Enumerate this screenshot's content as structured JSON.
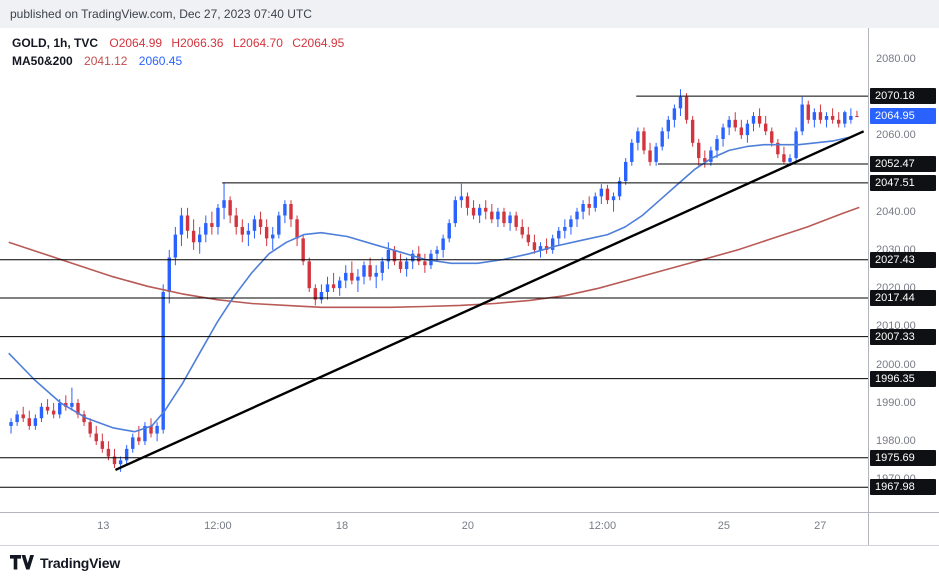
{
  "publish_bar": {
    "text": "published on TradingView.com, Dec 27, 2023 07:40 UTC"
  },
  "legend": {
    "symbol": "GOLD, 1h, TVC",
    "ohlc_o": "O2064.99",
    "ohlc_h": "H2066.36",
    "ohlc_l": "L2064.70",
    "ohlc_c": "C2064.95",
    "ma_label": "MA50&200",
    "ma_values": [
      "2041.12",
      "2060.45"
    ]
  },
  "footer": {
    "brand": "TradingView"
  },
  "colors": {
    "candle_up": "#2962ff",
    "candle_down": "#d2353e",
    "ma_fast": "#4e7fd9",
    "ma_slow": "#b85a56",
    "level_line": "#000000",
    "trend_line": "#000000",
    "axis_text": "#787b86",
    "last_badge": "#2962ff",
    "level_badge": "#0f1013"
  },
  "chart_data": {
    "type": "candlestick",
    "title": "GOLD 1h TVC",
    "symbol": "GOLD",
    "interval": "1h",
    "exchange": "TVC",
    "last_price": 2064.95,
    "y_axis": {
      "min": 1961.5,
      "max": 2088,
      "ticks": [
        {
          "label": "2080.00",
          "price": 2080
        },
        {
          "label": "2060.00",
          "price": 2060
        },
        {
          "label": "2040.00",
          "price": 2040
        },
        {
          "label": "2030.00",
          "price": 2030
        },
        {
          "label": "2020.00",
          "price": 2020
        },
        {
          "label": "2010.00",
          "price": 2010
        },
        {
          "label": "2000.00",
          "price": 2000
        },
        {
          "label": "1990.00",
          "price": 1990
        },
        {
          "label": "1980.00",
          "price": 1980
        },
        {
          "label": "1970.00",
          "price": 1970
        }
      ]
    },
    "x_axis": {
      "ticks": [
        {
          "label": "13",
          "x": 0.119
        },
        {
          "label": "12:00",
          "x": 0.251
        },
        {
          "label": "18",
          "x": 0.394
        },
        {
          "label": "20",
          "x": 0.539
        },
        {
          "label": "12:00",
          "x": 0.694
        },
        {
          "label": "25",
          "x": 0.834
        },
        {
          "label": "27",
          "x": 0.945
        }
      ]
    },
    "price_badges": [
      {
        "label": "2070.18",
        "price": 2070.18,
        "type": "level"
      },
      {
        "label": "2064.95",
        "price": 2064.95,
        "type": "last"
      },
      {
        "label": "2052.47",
        "price": 2052.47,
        "type": "level"
      },
      {
        "label": "2047.51",
        "price": 2047.51,
        "type": "level"
      },
      {
        "label": "2027.43",
        "price": 2027.43,
        "type": "level"
      },
      {
        "label": "2017.44",
        "price": 2017.44,
        "type": "level"
      },
      {
        "label": "2007.33",
        "price": 2007.33,
        "type": "level"
      },
      {
        "label": "1996.35",
        "price": 1996.35,
        "type": "level"
      },
      {
        "label": "1975.69",
        "price": 1975.69,
        "type": "level"
      },
      {
        "label": "1967.98",
        "price": 1967.98,
        "type": "level"
      }
    ],
    "price_lines": [
      {
        "price": 2070.18,
        "from": 0.733,
        "to": 1
      },
      {
        "price": 2052.47,
        "from": 0.758,
        "to": 1
      },
      {
        "price": 2047.51,
        "from": 0.256,
        "to": 1
      },
      {
        "price": 2027.43,
        "from": 0,
        "to": 1
      },
      {
        "price": 2017.44,
        "from": 0,
        "to": 1
      },
      {
        "price": 2007.33,
        "from": 0,
        "to": 1
      },
      {
        "price": 1996.35,
        "from": 0,
        "to": 1
      },
      {
        "price": 1975.69,
        "from": 0,
        "to": 1
      },
      {
        "price": 1967.98,
        "from": 0,
        "to": 1
      }
    ],
    "trend_line": {
      "x1": 0.133,
      "price1": 1972.5,
      "x2": 0.995,
      "price2": 2061
    },
    "ma_fast": {
      "name": "MA blue",
      "points": [
        [
          0.01,
          2003
        ],
        [
          0.04,
          1996
        ],
        [
          0.07,
          1990
        ],
        [
          0.1,
          1986
        ],
        [
          0.13,
          1983.5
        ],
        [
          0.155,
          1982.5
        ],
        [
          0.175,
          1984
        ],
        [
          0.19,
          1988
        ],
        [
          0.21,
          1995
        ],
        [
          0.23,
          2003
        ],
        [
          0.25,
          2011
        ],
        [
          0.27,
          2018
        ],
        [
          0.29,
          2024
        ],
        [
          0.31,
          2029
        ],
        [
          0.33,
          2032
        ],
        [
          0.35,
          2034
        ],
        [
          0.37,
          2034.5
        ],
        [
          0.4,
          2033.5
        ],
        [
          0.43,
          2031.5
        ],
        [
          0.46,
          2029.5
        ],
        [
          0.49,
          2027.5
        ],
        [
          0.52,
          2026.5
        ],
        [
          0.55,
          2026.5
        ],
        [
          0.58,
          2027.5
        ],
        [
          0.61,
          2029
        ],
        [
          0.64,
          2031
        ],
        [
          0.67,
          2032.5
        ],
        [
          0.7,
          2034
        ],
        [
          0.72,
          2036
        ],
        [
          0.74,
          2039
        ],
        [
          0.76,
          2043
        ],
        [
          0.78,
          2047
        ],
        [
          0.8,
          2051
        ],
        [
          0.82,
          2054
        ],
        [
          0.84,
          2056
        ],
        [
          0.86,
          2057
        ],
        [
          0.88,
          2057.5
        ],
        [
          0.9,
          2057.5
        ],
        [
          0.92,
          2057.5
        ],
        [
          0.94,
          2058
        ],
        [
          0.96,
          2058.5
        ],
        [
          0.98,
          2059.5
        ],
        [
          0.99,
          2060.45
        ]
      ]
    },
    "ma_slow": {
      "name": "MA red",
      "points": [
        [
          0.01,
          2032
        ],
        [
          0.05,
          2029
        ],
        [
          0.09,
          2026
        ],
        [
          0.13,
          2023
        ],
        [
          0.17,
          2020.5
        ],
        [
          0.21,
          2018.5
        ],
        [
          0.25,
          2017
        ],
        [
          0.29,
          2016
        ],
        [
          0.33,
          2015.5
        ],
        [
          0.37,
          2015
        ],
        [
          0.41,
          2015
        ],
        [
          0.45,
          2015
        ],
        [
          0.49,
          2015.2
        ],
        [
          0.53,
          2015.5
        ],
        [
          0.57,
          2016
        ],
        [
          0.61,
          2016.8
        ],
        [
          0.65,
          2018
        ],
        [
          0.69,
          2020
        ],
        [
          0.73,
          2022.5
        ],
        [
          0.77,
          2025
        ],
        [
          0.81,
          2027.5
        ],
        [
          0.85,
          2030
        ],
        [
          0.89,
          2033
        ],
        [
          0.93,
          2036
        ],
        [
          0.97,
          2039.5
        ],
        [
          0.99,
          2041.12
        ]
      ]
    },
    "candles": [
      [
        1984,
        1986,
        1982,
        1985
      ],
      [
        1985,
        1988,
        1984,
        1987
      ],
      [
        1987,
        1989,
        1985,
        1986
      ],
      [
        1986,
        1988,
        1983,
        1984
      ],
      [
        1984,
        1987,
        1983,
        1986
      ],
      [
        1986,
        1990,
        1985,
        1989
      ],
      [
        1989,
        1991,
        1987,
        1988
      ],
      [
        1988,
        1990,
        1986,
        1987
      ],
      [
        1987,
        1991,
        1986,
        1990
      ],
      [
        1990,
        1992,
        1988,
        1989
      ],
      [
        1989,
        1994,
        1988,
        1990
      ],
      [
        1990,
        1991,
        1986,
        1987
      ],
      [
        1987,
        1988,
        1984,
        1985
      ],
      [
        1985,
        1986,
        1981,
        1982
      ],
      [
        1982,
        1984,
        1979,
        1980
      ],
      [
        1980,
        1982,
        1977,
        1978
      ],
      [
        1978,
        1980,
        1975,
        1976
      ],
      [
        1976,
        1978,
        1973,
        1974
      ],
      [
        1974,
        1976,
        1972,
        1975
      ],
      [
        1975,
        1979,
        1974,
        1978
      ],
      [
        1978,
        1982,
        1977,
        1981
      ],
      [
        1981,
        1984,
        1979,
        1980
      ],
      [
        1980,
        1985,
        1979,
        1984
      ],
      [
        1984,
        1986,
        1981,
        1982
      ],
      [
        1982,
        1985,
        1980,
        1984
      ],
      [
        1983,
        2021,
        1982,
        2019
      ],
      [
        2019,
        2030,
        2016,
        2028
      ],
      [
        2028,
        2036,
        2026,
        2034
      ],
      [
        2034,
        2041,
        2031,
        2039
      ],
      [
        2039,
        2041,
        2033,
        2035
      ],
      [
        2035,
        2038,
        2030,
        2032
      ],
      [
        2032,
        2036,
        2029,
        2034
      ],
      [
        2034,
        2039,
        2032,
        2037
      ],
      [
        2037,
        2040,
        2034,
        2036
      ],
      [
        2036,
        2042,
        2034,
        2041
      ],
      [
        2041,
        2047.5,
        2038,
        2043
      ],
      [
        2043,
        2044,
        2037,
        2039
      ],
      [
        2039,
        2041,
        2034,
        2036
      ],
      [
        2036,
        2038,
        2032,
        2034
      ],
      [
        2034,
        2037,
        2031,
        2035
      ],
      [
        2035,
        2039,
        2033,
        2038
      ],
      [
        2038,
        2040,
        2034,
        2036
      ],
      [
        2036,
        2038,
        2031,
        2033
      ],
      [
        2033,
        2036,
        2030,
        2034
      ],
      [
        2034,
        2040,
        2033,
        2039
      ],
      [
        2039,
        2043,
        2037,
        2042
      ],
      [
        2042,
        2043,
        2036,
        2038
      ],
      [
        2038,
        2039,
        2031,
        2033
      ],
      [
        2033,
        2034,
        2026,
        2027
      ],
      [
        2027,
        2028,
        2019,
        2020
      ],
      [
        2020,
        2021,
        2015.5,
        2017
      ],
      [
        2017,
        2021,
        2016,
        2019
      ],
      [
        2019,
        2023,
        2017,
        2021
      ],
      [
        2021,
        2024,
        2019,
        2020
      ],
      [
        2020,
        2023,
        2018,
        2022
      ],
      [
        2022,
        2026,
        2020,
        2024
      ],
      [
        2024,
        2027,
        2021,
        2022
      ],
      [
        2022,
        2025,
        2019,
        2023
      ],
      [
        2023,
        2027,
        2021,
        2026
      ],
      [
        2026,
        2028,
        2022,
        2023
      ],
      [
        2023,
        2026,
        2020,
        2024
      ],
      [
        2024,
        2028,
        2022,
        2027
      ],
      [
        2027,
        2032,
        2025,
        2030
      ],
      [
        2030,
        2031,
        2026,
        2027
      ],
      [
        2027,
        2029,
        2024,
        2025
      ],
      [
        2025,
        2028,
        2023,
        2027
      ],
      [
        2027,
        2030,
        2025,
        2029
      ],
      [
        2029,
        2031,
        2026,
        2027
      ],
      [
        2027,
        2029,
        2024,
        2026
      ],
      [
        2026,
        2030,
        2025,
        2029
      ],
      [
        2029,
        2031,
        2027,
        2030
      ],
      [
        2030,
        2034,
        2028,
        2033
      ],
      [
        2033,
        2038,
        2032,
        2037
      ],
      [
        2037,
        2044,
        2036,
        2043
      ],
      [
        2043,
        2047.3,
        2041,
        2044
      ],
      [
        2044,
        2045,
        2039,
        2041
      ],
      [
        2041,
        2043,
        2038,
        2039
      ],
      [
        2039,
        2042,
        2037,
        2041
      ],
      [
        2041,
        2043,
        2038,
        2040
      ],
      [
        2040,
        2042,
        2037,
        2038
      ],
      [
        2038,
        2041,
        2036,
        2040
      ],
      [
        2040,
        2041,
        2036,
        2037
      ],
      [
        2037,
        2040,
        2035,
        2039
      ],
      [
        2039,
        2040,
        2035,
        2036
      ],
      [
        2036,
        2038,
        2033,
        2034
      ],
      [
        2034,
        2036,
        2031,
        2032
      ],
      [
        2032,
        2034,
        2029,
        2030
      ],
      [
        2030,
        2032,
        2028,
        2031
      ],
      [
        2031,
        2033,
        2029,
        2030
      ],
      [
        2030,
        2034,
        2029,
        2033
      ],
      [
        2033,
        2036,
        2031,
        2035
      ],
      [
        2035,
        2038,
        2033,
        2036
      ],
      [
        2036,
        2039,
        2034,
        2038
      ],
      [
        2038,
        2041,
        2036,
        2040
      ],
      [
        2040,
        2043,
        2038,
        2042
      ],
      [
        2042,
        2044,
        2039,
        2041
      ],
      [
        2041,
        2045,
        2040,
        2044
      ],
      [
        2044,
        2047.2,
        2042,
        2046
      ],
      [
        2046,
        2047,
        2042,
        2043
      ],
      [
        2043,
        2045,
        2040,
        2044
      ],
      [
        2044,
        2049,
        2043,
        2048
      ],
      [
        2048,
        2054,
        2047,
        2053
      ],
      [
        2053,
        2059,
        2052,
        2058
      ],
      [
        2058,
        2062,
        2056,
        2061
      ],
      [
        2061,
        2062,
        2055,
        2056
      ],
      [
        2056,
        2058,
        2052,
        2053
      ],
      [
        2053,
        2058,
        2052,
        2057
      ],
      [
        2057,
        2062,
        2056,
        2061
      ],
      [
        2061,
        2065,
        2059,
        2064
      ],
      [
        2064,
        2068,
        2062,
        2067
      ],
      [
        2067,
        2072,
        2065,
        2070
      ],
      [
        2070,
        2071,
        2063,
        2064
      ],
      [
        2064,
        2065,
        2057,
        2058
      ],
      [
        2058,
        2059,
        2052,
        2054
      ],
      [
        2054,
        2056,
        2051.5,
        2053
      ],
      [
        2053,
        2057,
        2052,
        2056
      ],
      [
        2056,
        2060,
        2054,
        2059
      ],
      [
        2059,
        2063,
        2057,
        2062
      ],
      [
        2062,
        2065,
        2060,
        2064
      ],
      [
        2064,
        2066,
        2061,
        2062
      ],
      [
        2062,
        2064,
        2059,
        2060
      ],
      [
        2060,
        2064,
        2058,
        2063
      ],
      [
        2063,
        2066,
        2061,
        2065
      ],
      [
        2065,
        2067,
        2062,
        2063
      ],
      [
        2063,
        2065,
        2060,
        2061
      ],
      [
        2061,
        2062,
        2057,
        2058
      ],
      [
        2058,
        2059,
        2054,
        2055
      ],
      [
        2055,
        2057,
        2052.5,
        2053
      ],
      [
        2053,
        2055,
        2052,
        2054
      ],
      [
        2054,
        2062,
        2053,
        2061
      ],
      [
        2061,
        2070,
        2060,
        2068
      ],
      [
        2068,
        2069,
        2063,
        2064
      ],
      [
        2064,
        2067,
        2062,
        2066
      ],
      [
        2066,
        2068,
        2063,
        2064
      ],
      [
        2064,
        2066,
        2062,
        2065
      ],
      [
        2065,
        2067,
        2063,
        2064
      ],
      [
        2064,
        2066,
        2062,
        2063
      ],
      [
        2063,
        2066.4,
        2062,
        2066
      ],
      [
        2064,
        2067,
        2063,
        2065
      ],
      [
        2064.99,
        2066.36,
        2064.7,
        2064.95
      ]
    ]
  }
}
